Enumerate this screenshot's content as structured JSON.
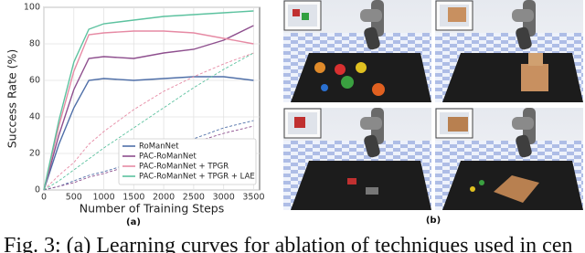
{
  "chart_data": {
    "type": "line",
    "xlabel": "Number of Training Steps",
    "ylabel": "Success Rate (%)",
    "x": [
      0,
      250,
      500,
      750,
      1000,
      1500,
      2000,
      2500,
      3000,
      3500
    ],
    "series": [
      {
        "name": "RoManNet",
        "color": "#4f6fa8",
        "values": [
          0,
          25,
          45,
          60,
          61,
          60,
          61,
          62,
          62,
          60
        ]
      },
      {
        "name": "PAC-RoManNet",
        "color": "#8e4f8e",
        "values": [
          0,
          30,
          55,
          72,
          73,
          72,
          75,
          77,
          82,
          90
        ]
      },
      {
        "name": "PAC-RoManNet + TPGR",
        "color": "#e68aa4",
        "values": [
          0,
          35,
          65,
          85,
          86,
          87,
          87,
          86,
          83,
          80
        ]
      },
      {
        "name": "PAC-RoManNet + TPGR + LAE",
        "color": "#5cc29f",
        "values": [
          0,
          38,
          70,
          88,
          91,
          93,
          95,
          96,
          97,
          98
        ]
      },
      {
        "color": "#4f6fa8",
        "dash": true,
        "values": [
          0,
          2,
          5,
          8,
          10,
          15,
          22,
          28,
          34,
          38
        ]
      },
      {
        "color": "#8e4f8e",
        "dash": true,
        "values": [
          0,
          2,
          4,
          7,
          9,
          14,
          20,
          26,
          31,
          35
        ]
      },
      {
        "color": "#e68aa4",
        "dash": true,
        "values": [
          0,
          8,
          15,
          25,
          32,
          44,
          54,
          62,
          69,
          75
        ]
      },
      {
        "color": "#5cc29f",
        "dash": true,
        "values": [
          0,
          5,
          11,
          17,
          23,
          34,
          45,
          56,
          66,
          75
        ]
      }
    ],
    "xlim": [
      0,
      3600
    ],
    "ylim": [
      0,
      100
    ],
    "xticks": [
      0,
      500,
      1000,
      1500,
      2000,
      2500,
      3000,
      3500
    ],
    "yticks": [
      0,
      20,
      40,
      60,
      80,
      100
    ],
    "grid": true,
    "legend": "lower right"
  },
  "panel_labels": [
    "(a)",
    "(b)"
  ],
  "caption": "Fig. 3: (a) Learning curves for ablation of techniques used in cen"
}
